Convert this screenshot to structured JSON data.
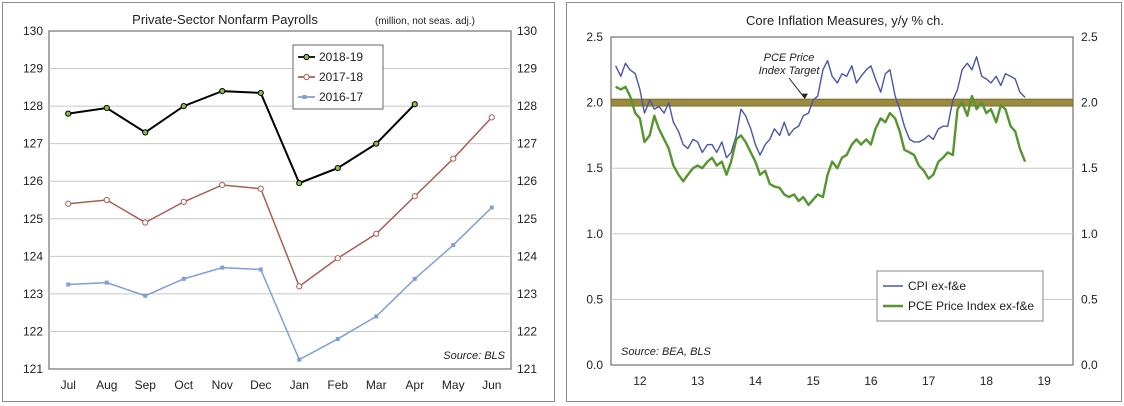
{
  "chart_data": [
    {
      "type": "line",
      "title": "Private-Sector Nonfarm Payrolls",
      "subtitle": "(million, not seas. adj.)",
      "source": "Source: BLS",
      "categories": [
        "Jul",
        "Aug",
        "Sep",
        "Oct",
        "Nov",
        "Dec",
        "Jan",
        "Feb",
        "Mar",
        "Apr",
        "May",
        "Jun"
      ],
      "ylim": [
        121,
        130
      ],
      "yticks": [
        "121",
        "122",
        "123",
        "124",
        "125",
        "126",
        "127",
        "128",
        "129",
        "130"
      ],
      "grid": true,
      "legend_position": "top-center",
      "series": [
        {
          "name": "2018-19",
          "color": "#000000",
          "marker_fill": "#8dbf3f",
          "values": [
            127.8,
            127.95,
            127.3,
            128.0,
            128.4,
            128.35,
            125.95,
            126.35,
            127.0,
            128.05,
            null,
            null
          ]
        },
        {
          "name": "2017-18",
          "color": "#a85e55",
          "marker_fill": "#ffffff",
          "values": [
            125.4,
            125.5,
            124.9,
            125.45,
            125.9,
            125.8,
            123.2,
            123.95,
            124.6,
            125.6,
            126.6,
            127.7
          ]
        },
        {
          "name": "2016-17",
          "color": "#7f9ed6",
          "marker_fill": "#7f9ed6",
          "values": [
            123.25,
            123.3,
            122.95,
            123.4,
            123.7,
            123.65,
            121.25,
            121.8,
            122.4,
            123.4,
            124.3,
            125.3
          ]
        }
      ]
    },
    {
      "type": "line",
      "title": "Core Inflation Measures, y/y % ch.",
      "source": "Source: BEA, BLS",
      "annotation": [
        "PCE Price",
        "Index Target"
      ],
      "target_value": 2.0,
      "xlim": [
        2011.5,
        2019.5
      ],
      "xticks": [
        "12",
        "13",
        "14",
        "15",
        "16",
        "17",
        "18",
        "19"
      ],
      "ylim": [
        0.0,
        2.5
      ],
      "yticks": [
        "0.0",
        "0.5",
        "1.0",
        "1.5",
        "2.0",
        "2.5"
      ],
      "grid": true,
      "legend_position": "bottom-right",
      "series": [
        {
          "name": "CPI ex-f&e",
          "color": "#4a55a8",
          "x": [
            2011.58,
            2011.67,
            2011.75,
            2011.83,
            2011.92,
            2012.0,
            2012.08,
            2012.17,
            2012.25,
            2012.33,
            2012.42,
            2012.5,
            2012.58,
            2012.67,
            2012.75,
            2012.83,
            2012.92,
            2013.0,
            2013.08,
            2013.17,
            2013.25,
            2013.33,
            2013.42,
            2013.5,
            2013.58,
            2013.67,
            2013.75,
            2013.83,
            2013.92,
            2014.0,
            2014.08,
            2014.17,
            2014.25,
            2014.33,
            2014.42,
            2014.5,
            2014.58,
            2014.67,
            2014.75,
            2014.83,
            2014.92,
            2015.0,
            2015.08,
            2015.17,
            2015.25,
            2015.33,
            2015.42,
            2015.5,
            2015.58,
            2015.67,
            2015.75,
            2015.83,
            2015.92,
            2016.0,
            2016.08,
            2016.17,
            2016.25,
            2016.33,
            2016.42,
            2016.5,
            2016.58,
            2016.67,
            2016.75,
            2016.83,
            2016.92,
            2017.0,
            2017.08,
            2017.17,
            2017.25,
            2017.33,
            2017.42,
            2017.5,
            2017.58,
            2017.67,
            2017.75,
            2017.83,
            2017.92,
            2018.0,
            2018.08,
            2018.17,
            2018.25,
            2018.33,
            2018.42,
            2018.5,
            2018.58,
            2018.67
          ],
          "y": [
            2.28,
            2.2,
            2.3,
            2.25,
            2.22,
            2.1,
            1.92,
            2.02,
            1.95,
            1.97,
            1.92,
            2.0,
            1.85,
            1.78,
            1.68,
            1.65,
            1.72,
            1.7,
            1.62,
            1.68,
            1.68,
            1.62,
            1.7,
            1.58,
            1.62,
            1.75,
            1.95,
            1.9,
            1.8,
            1.68,
            1.6,
            1.68,
            1.72,
            1.8,
            1.75,
            1.85,
            1.75,
            1.8,
            1.82,
            1.9,
            1.92,
            2.02,
            2.05,
            2.25,
            2.32,
            2.2,
            2.15,
            2.22,
            2.2,
            2.28,
            2.15,
            2.2,
            2.25,
            2.28,
            2.18,
            2.08,
            2.22,
            2.25,
            2.05,
            1.95,
            1.82,
            1.72,
            1.7,
            1.7,
            1.72,
            1.75,
            1.72,
            1.8,
            1.82,
            1.82,
            2.02,
            2.1,
            2.25,
            2.3,
            2.25,
            2.35,
            2.2,
            2.18,
            2.15,
            2.2,
            2.13,
            2.22,
            2.2,
            2.18,
            2.08,
            2.04
          ]
        },
        {
          "name": "PCE Price Index ex-f&e",
          "color": "#56952f",
          "x": [
            2011.58,
            2011.67,
            2011.75,
            2011.83,
            2011.92,
            2012.0,
            2012.08,
            2012.17,
            2012.25,
            2012.33,
            2012.42,
            2012.5,
            2012.58,
            2012.67,
            2012.75,
            2012.83,
            2012.92,
            2013.0,
            2013.08,
            2013.17,
            2013.25,
            2013.33,
            2013.42,
            2013.5,
            2013.58,
            2013.67,
            2013.75,
            2013.83,
            2013.92,
            2014.0,
            2014.08,
            2014.17,
            2014.25,
            2014.33,
            2014.42,
            2014.5,
            2014.58,
            2014.67,
            2014.75,
            2014.83,
            2014.92,
            2015.0,
            2015.08,
            2015.17,
            2015.25,
            2015.33,
            2015.42,
            2015.5,
            2015.58,
            2015.67,
            2015.75,
            2015.83,
            2015.92,
            2016.0,
            2016.08,
            2016.17,
            2016.25,
            2016.33,
            2016.42,
            2016.5,
            2016.58,
            2016.67,
            2016.75,
            2016.83,
            2016.92,
            2017.0,
            2017.08,
            2017.17,
            2017.25,
            2017.33,
            2017.42,
            2017.5,
            2017.58,
            2017.67,
            2017.75,
            2017.83,
            2017.92,
            2018.0,
            2018.08,
            2018.17,
            2018.25,
            2018.33,
            2018.42,
            2018.5,
            2018.58,
            2018.67
          ],
          "y": [
            2.12,
            2.1,
            2.12,
            2.05,
            1.92,
            1.88,
            1.7,
            1.75,
            1.9,
            1.8,
            1.72,
            1.65,
            1.52,
            1.45,
            1.4,
            1.45,
            1.5,
            1.52,
            1.5,
            1.55,
            1.58,
            1.52,
            1.55,
            1.45,
            1.55,
            1.72,
            1.75,
            1.7,
            1.62,
            1.55,
            1.45,
            1.48,
            1.38,
            1.36,
            1.35,
            1.3,
            1.28,
            1.3,
            1.25,
            1.28,
            1.22,
            1.26,
            1.3,
            1.28,
            1.45,
            1.55,
            1.5,
            1.58,
            1.6,
            1.68,
            1.72,
            1.68,
            1.72,
            1.68,
            1.8,
            1.88,
            1.85,
            1.92,
            1.88,
            1.78,
            1.64,
            1.62,
            1.6,
            1.52,
            1.48,
            1.42,
            1.45,
            1.55,
            1.58,
            1.62,
            1.6,
            1.95,
            2.0,
            1.9,
            2.05,
            1.95,
            2.0,
            1.92,
            1.95,
            1.85,
            1.98,
            1.95,
            1.82,
            1.78,
            1.65,
            1.55
          ]
        }
      ]
    }
  ]
}
